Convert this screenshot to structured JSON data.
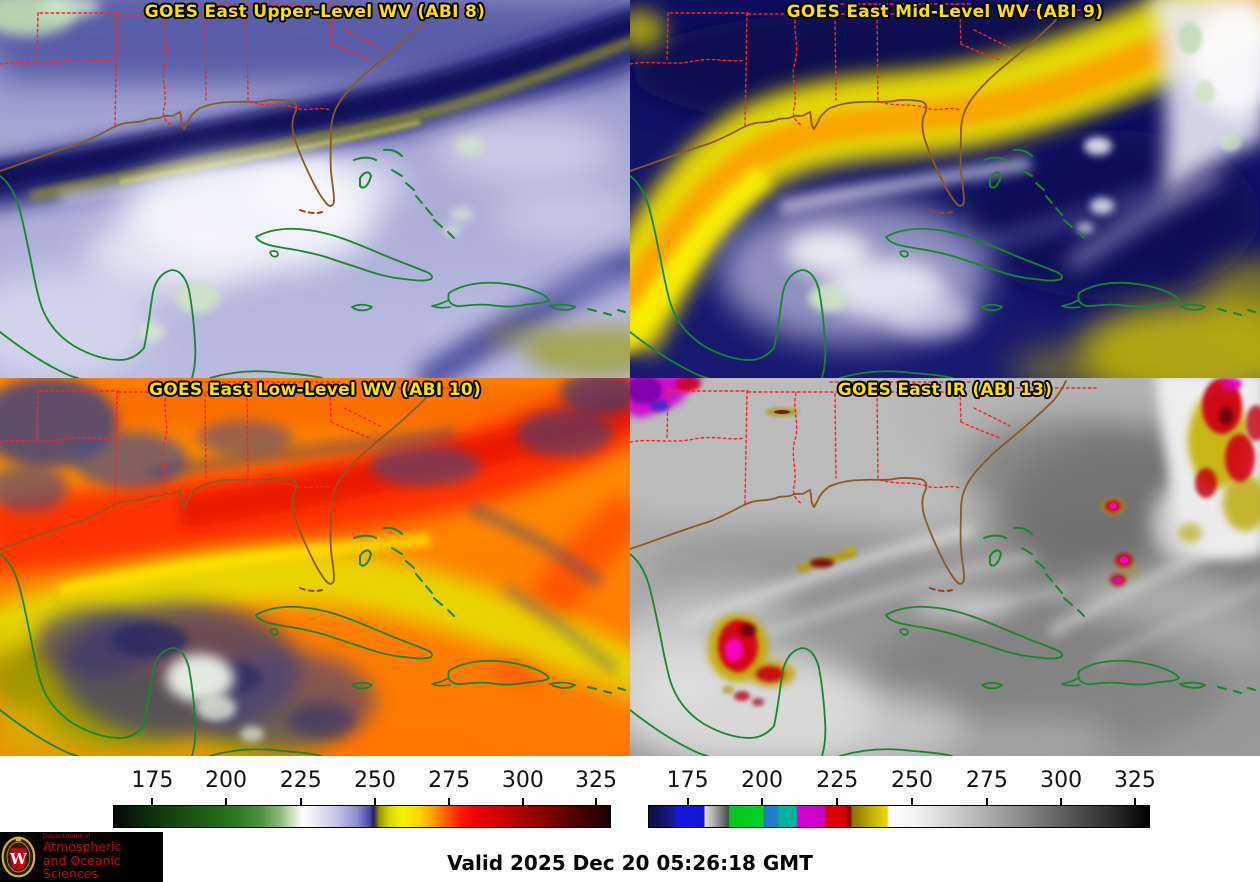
{
  "panels": [
    {
      "id": "abi8",
      "title": "GOES East Upper-Level WV (ABI 8)"
    },
    {
      "id": "abi9",
      "title": "GOES East Mid-Level WV (ABI 9)"
    },
    {
      "id": "abi10",
      "title": "GOES East Low-Level WV (ABI 10)"
    },
    {
      "id": "abi13",
      "title": "GOES East IR (ABI 13)"
    }
  ],
  "colorbars": [
    {
      "name": "water-vapor-colorbar",
      "ticks": [
        "175",
        "200",
        "225",
        "250",
        "275",
        "300",
        "325"
      ]
    },
    {
      "name": "infrared-colorbar",
      "ticks": [
        "175",
        "200",
        "225",
        "250",
        "275",
        "300",
        "325"
      ]
    }
  ],
  "footer": {
    "valid_text": "Valid 2025 Dec 20 05:26:18 GMT",
    "logo": {
      "line1": "Department of",
      "line2": "Atmospheric",
      "line3": "and Oceanic Sciences",
      "monogram": "W"
    }
  },
  "colors": {
    "title_yellow": "#ffdf00",
    "state_border_red": "#ff2222",
    "coast_brown": "#8a5a20",
    "island_green": "#17862e",
    "uw_red": "#c5050c"
  }
}
